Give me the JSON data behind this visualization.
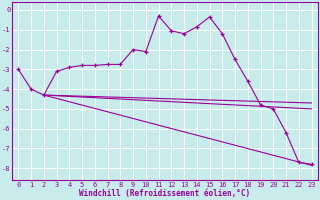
{
  "xlabel": "Windchill (Refroidissement éolien,°C)",
  "bg_color": "#c8ecec",
  "line_color": "#990099",
  "grid_color": "#ffffff",
  "spine_color": "#990099",
  "xlim": [
    -0.5,
    23.5
  ],
  "ylim": [
    -8.6,
    0.4
  ],
  "yticks": [
    0,
    -1,
    -2,
    -3,
    -4,
    -5,
    -6,
    -7,
    -8
  ],
  "xticks": [
    0,
    1,
    2,
    3,
    4,
    5,
    6,
    7,
    8,
    9,
    10,
    11,
    12,
    13,
    14,
    15,
    16,
    17,
    18,
    19,
    20,
    21,
    22,
    23
  ],
  "main_x": [
    0,
    1,
    2,
    3,
    4,
    5,
    6,
    7,
    8,
    9,
    10,
    11,
    12,
    13,
    14,
    15,
    16,
    17,
    18,
    19,
    20,
    21,
    22,
    23
  ],
  "main_y": [
    -3.0,
    -4.0,
    -4.3,
    -3.1,
    -2.9,
    -2.8,
    -2.8,
    -2.75,
    -2.75,
    -2.0,
    -2.1,
    -0.3,
    -1.05,
    -1.2,
    -0.85,
    -0.35,
    -1.2,
    -2.5,
    -3.6,
    -4.8,
    -5.0,
    -6.2,
    -7.7,
    -7.8
  ],
  "lines": [
    {
      "x": [
        2,
        23
      ],
      "y": [
        -4.3,
        -4.7
      ]
    },
    {
      "x": [
        2,
        23
      ],
      "y": [
        -4.3,
        -5.0
      ]
    },
    {
      "x": [
        2,
        23
      ],
      "y": [
        -4.3,
        -7.85
      ]
    }
  ],
  "tick_fontsize": 5,
  "xlabel_fontsize": 5.5
}
